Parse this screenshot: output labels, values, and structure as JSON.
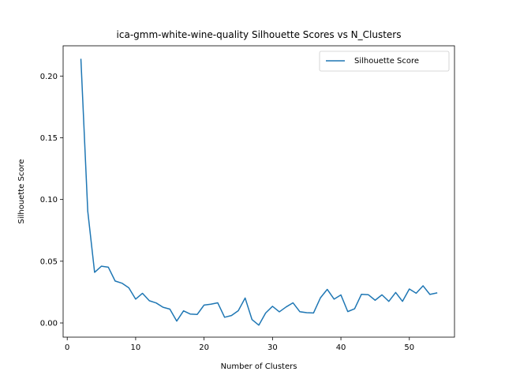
{
  "chart_data": {
    "type": "line",
    "title": "ica-gmm-white-wine-quality Silhouette Scores vs N_Clusters",
    "xlabel": "Number of Clusters",
    "ylabel": "Silhouette Score",
    "xlim": [
      -0.6,
      56.6
    ],
    "ylim": [
      -0.0115,
      0.2245
    ],
    "x_ticks": [
      0,
      10,
      20,
      30,
      40,
      50
    ],
    "x_tick_labels": [
      "0",
      "10",
      "20",
      "30",
      "40",
      "50"
    ],
    "y_ticks": [
      0.0,
      0.05,
      0.1,
      0.15,
      0.2
    ],
    "y_tick_labels": [
      "0.00",
      "0.05",
      "0.10",
      "0.15",
      "0.20"
    ],
    "grid": false,
    "legend_position": "top-right",
    "series": [
      {
        "name": "Silhouette Score",
        "color": "#1f77b4",
        "x": [
          2,
          3,
          4,
          5,
          6,
          7,
          8,
          9,
          10,
          11,
          12,
          13,
          14,
          15,
          16,
          17,
          18,
          19,
          20,
          21,
          22,
          23,
          24,
          25,
          26,
          27,
          28,
          29,
          30,
          31,
          32,
          33,
          34,
          35,
          36,
          37,
          38,
          39,
          40,
          41,
          42,
          43,
          44,
          45,
          46,
          47,
          48,
          49,
          50,
          51,
          52,
          53,
          54
        ],
        "y": [
          0.2135,
          0.0905,
          0.041,
          0.046,
          0.0452,
          0.034,
          0.0322,
          0.0285,
          0.0193,
          0.024,
          0.018,
          0.0162,
          0.0127,
          0.0112,
          0.0015,
          0.0098,
          0.0072,
          0.0069,
          0.0145,
          0.0152,
          0.0163,
          0.0046,
          0.006,
          0.0099,
          0.0202,
          0.0028,
          -0.0018,
          0.0081,
          0.0135,
          0.009,
          0.013,
          0.0163,
          0.0091,
          0.0083,
          0.0081,
          0.0203,
          0.0272,
          0.0193,
          0.0227,
          0.0092,
          0.0115,
          0.0232,
          0.0229,
          0.0184,
          0.0228,
          0.0175,
          0.0247,
          0.0175,
          0.0275,
          0.0241,
          0.0301,
          0.0231,
          0.0243
        ]
      }
    ]
  }
}
